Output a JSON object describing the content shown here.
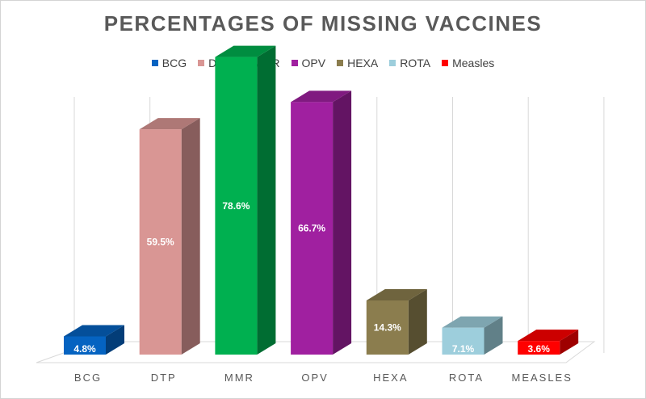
{
  "chart_data": {
    "type": "bar",
    "title": "PERCENTAGES OF MISSING VACCINES",
    "categories": [
      "BCG",
      "DTP",
      "MMR",
      "OPV",
      "HEXA",
      "ROTA",
      "MEASLES"
    ],
    "legend_names": [
      "BCG",
      "DTP",
      "MMR",
      "OPV",
      "HEXA",
      "ROTA",
      "Measles"
    ],
    "values": [
      4.8,
      59.5,
      78.6,
      66.7,
      14.3,
      7.1,
      3.6
    ],
    "data_labels": [
      "4.8%",
      "59.5%",
      "78.6%",
      "66.7%",
      "14.3%",
      "7.1%",
      "3.6%"
    ],
    "colors": [
      "#0563C1",
      "#D99694",
      "#00B050",
      "#A020A0",
      "#8B7D4E",
      "#9DCEDC",
      "#FF0000"
    ],
    "ylim": [
      0,
      80
    ],
    "grid": "vertical",
    "legend_position": "top",
    "style": "3d-column"
  }
}
